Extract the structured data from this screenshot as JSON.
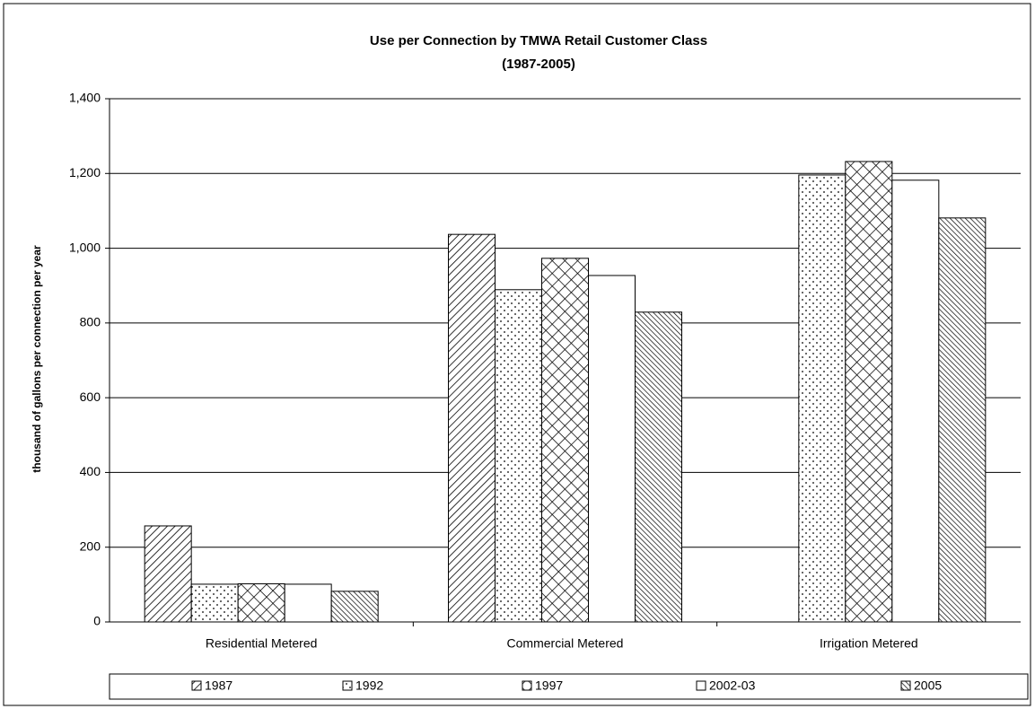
{
  "chart_data": {
    "type": "bar",
    "title": "Use per Connection by TMWA Retail Customer Class",
    "subtitle": "(1987-2005)",
    "y_label": "thousand of gallons per connection per year",
    "categories": [
      "Residential Metered",
      "Commercial Metered",
      "Irrigation Metered"
    ],
    "series": [
      {
        "name": "1987",
        "color": "#000000",
        "pattern": "diagonal",
        "values": [
          257,
          1037,
          null
        ]
      },
      {
        "name": "1992",
        "color": "#000000",
        "pattern": "dots",
        "values": [
          101,
          889,
          1196
        ]
      },
      {
        "name": "1997",
        "color": "#000000",
        "pattern": "crosshatch",
        "values": [
          102,
          973,
          1232
        ]
      },
      {
        "name": "2002-03",
        "color": "#000000",
        "pattern": "none",
        "values": [
          101,
          927,
          1182
        ]
      },
      {
        "name": "2005",
        "color": "#000000",
        "pattern": "backdiagonal",
        "values": [
          82,
          829,
          1081
        ]
      }
    ],
    "ylim": [
      0,
      1400
    ],
    "yticks": [
      0,
      200,
      400,
      600,
      800,
      {
        "value": 1000,
        "label": "1,000"
      },
      {
        "value": 1200,
        "label": "1,200"
      },
      {
        "value": 1400,
        "label": "1,400"
      }
    ],
    "grid": true,
    "legend": "bottom"
  }
}
